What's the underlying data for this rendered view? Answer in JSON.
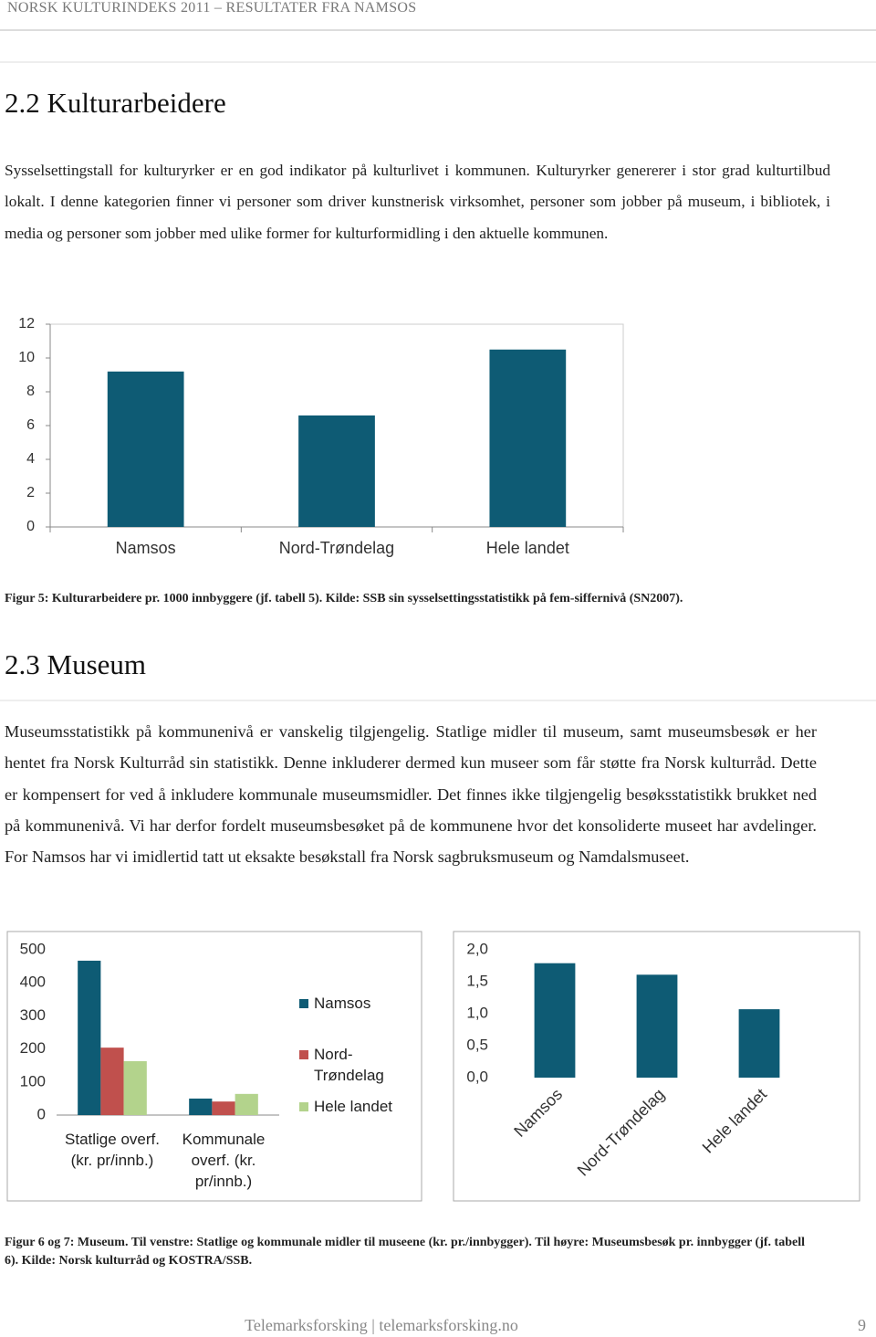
{
  "header": "NORSK KULTURINDEKS 2011 – RESULTATER FRA NAMSOS",
  "sections": [
    {
      "heading": "2.2 Kulturarbeidere",
      "paragraph": "Sysselsettingstall for kulturyrker er en god indikator på kulturlivet i kommunen. Kulturyrker genererer i stor grad kulturtilbud lokalt. I denne kategorien finner vi personer som driver kunstnerisk virksomhet, personer som jobber på museum, i bibliotek, i media og personer som jobber med ulike former for kulturformidling i den aktuelle kommunen.",
      "caption": "Figur 5: Kulturarbeidere pr. 1000 innbyggere (jf. tabell 5). Kilde: SSB sin sysselsettingsstatistikk på fem-siffernivå (SN2007)."
    },
    {
      "heading": "2.3 Museum",
      "paragraph": "Museumsstatistikk på kommunenivå er vanskelig tilgjengelig. Statlige midler til museum, samt museumsbesøk er her hentet fra Norsk Kulturråd sin statistikk. Denne inkluderer dermed kun museer som får støtte fra Norsk kulturråd. Dette er kompensert for ved å inkludere kommunale museumsmidler. Det finnes ikke tilgjengelig besøksstatistikk brukket ned på kommunenivå. Vi har derfor fordelt museumsbesøket på de kommunene hvor det konsoliderte museet har avdelinger. For Namsos har vi imidlertid tatt ut eksakte besøkstall fra Norsk sagbruksmuseum og Namdalsmuseet.",
      "caption": "Figur 6 og 7: Museum. Til venstre: Statlige og kommunale midler til museene (kr. pr./innbygger). Til høyre: Museumsbesøk pr. innbygger (jf. tabell 6). Kilde: Norsk kulturråd og KOSTRA/SSB."
    }
  ],
  "chart_data": [
    {
      "type": "bar",
      "categories": [
        "Namsos",
        "Nord-Trøndelag",
        "Hele landet"
      ],
      "values": [
        9.2,
        6.6,
        10.5
      ],
      "color": "#0e5b74",
      "ylim": [
        0,
        12
      ],
      "yticks": [
        0,
        2,
        4,
        6,
        8,
        10,
        12
      ]
    },
    {
      "type": "bar",
      "categories": [
        "Statlige overf. (kr. pr/innb.)",
        "Kommunale overf. (kr. pr/innb.)"
      ],
      "series": [
        {
          "name": "Namsos",
          "color": "#0e5b74",
          "values": [
            467,
            50
          ]
        },
        {
          "name": "Nord-Trøndelag",
          "color": "#c0504d",
          "values": [
            204,
            41
          ]
        },
        {
          "name": "Hele landet",
          "color": "#b3d38c",
          "values": [
            163,
            64
          ]
        }
      ],
      "ylim": [
        0,
        500
      ],
      "yticks": [
        0,
        100,
        200,
        300,
        400,
        500
      ],
      "legend": "right"
    },
    {
      "type": "bar",
      "categories": [
        "Namsos",
        "Nord-Trøndelag",
        "Hele landet"
      ],
      "values": [
        1.79,
        1.61,
        1.07
      ],
      "color": "#0e5b74",
      "ylim": [
        0,
        2
      ],
      "yticks": [
        {
          "value": 0,
          "label": "0,0"
        },
        {
          "value": 0.5,
          "label": "0,5"
        },
        {
          "value": 1,
          "label": "1,0"
        },
        {
          "value": 1.5,
          "label": "1,5"
        },
        {
          "value": 2,
          "label": "2,0"
        }
      ]
    }
  ],
  "footer": {
    "text": "Telemarksforsking | telemarksforsking.no",
    "page": 9
  }
}
